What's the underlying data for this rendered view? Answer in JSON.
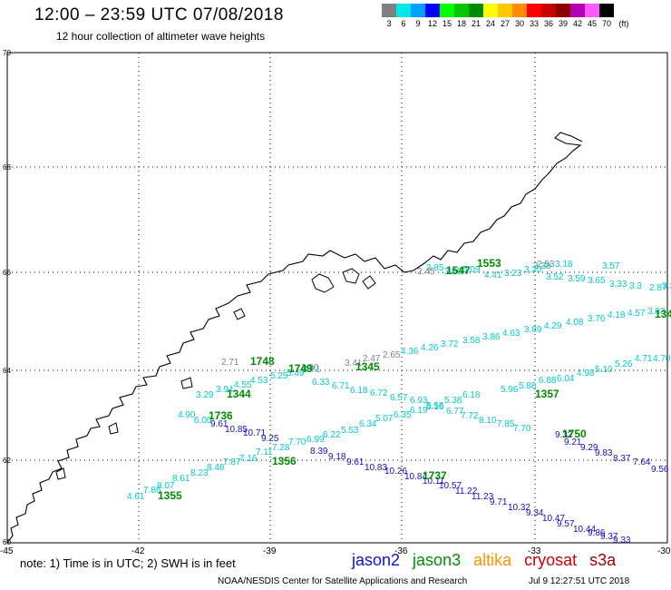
{
  "header": {
    "title": "12:00 – 23:59 UTC 07/08/2018",
    "subtitle": "12 hour collection of altimeter wave heights"
  },
  "scale": {
    "unit": "(ft)",
    "colors": [
      "#808080",
      "#00e8e8",
      "#00a0ff",
      "#0000ff",
      "#00ff00",
      "#00c800",
      "#008c00",
      "#ffff00",
      "#ffc800",
      "#ff8c00",
      "#ff0000",
      "#c80000",
      "#8c0000",
      "#b400b4",
      "#ff5aff",
      "#000000"
    ],
    "labels": [
      "3",
      "6",
      "9",
      "12",
      "15",
      "18",
      "21",
      "24",
      "27",
      "30",
      "33",
      "36",
      "39",
      "42",
      "45",
      "70"
    ]
  },
  "map": {
    "lat_labels": [
      "70",
      "68",
      "66",
      "64",
      "62",
      "60"
    ],
    "lon_labels": [
      "-45",
      "-42",
      "-39",
      "-36",
      "-33",
      "-30"
    ]
  },
  "tracks": {
    "cyan_a": {
      "color": "#00c8d0",
      "labels": [
        "4.61",
        "7.86",
        "8.07",
        "8.61",
        "8.23",
        "8.48",
        "7.87",
        "7.16",
        "7.11",
        "7.28",
        "7.70",
        "6.99",
        "6.22",
        "5.53",
        "6.34",
        "5.07",
        "6.35",
        "6.19",
        "5.56",
        "5.38",
        "6.18",
        "5.96",
        "6.04",
        "4.98",
        "5.10",
        "5.26",
        "4.71",
        "4.70"
      ]
    },
    "cyan_b": {
      "color": "#00c8d0",
      "labels": [
        "3.29",
        "3.94",
        "4.55",
        "4.53",
        "5.25",
        "5.49",
        "4.71",
        "6.33",
        "6.71",
        "6.18",
        "6.72",
        "6.57",
        "6.93",
        "6.16",
        "6.77",
        "7.72",
        "8.10",
        "7.85",
        "7.70",
        "5.88",
        "6.88"
      ]
    },
    "cyan_c": {
      "color": "#00c8d0",
      "labels": [
        "4.36",
        "4.26",
        "3.72",
        "3.58",
        "3.86",
        "4.63",
        "3.89",
        "4.29",
        "4.08",
        "3.76",
        "4.18",
        "4.57",
        "3.83"
      ]
    },
    "cyan_d": {
      "color": "#00c8d0",
      "labels": [
        "3.85",
        "3.90",
        "5.09",
        "4.41",
        "3.23",
        "3.20",
        "3.52",
        "3.59",
        "3.65",
        "3.33",
        "3.3",
        "2.87",
        "3.38",
        "3.57",
        "3.38",
        "3.18",
        "4.52"
      ]
    },
    "cyan_e": {
      "color": "#00c8d0",
      "labels": [
        "4.90",
        "6.00"
      ]
    },
    "blue": {
      "color": "#1010c8",
      "labels": [
        "9.61",
        "10.85",
        "10.71",
        "9.25",
        "8.39",
        "9.18",
        "9.61",
        "10.83",
        "10.26",
        "10.84",
        "10.11",
        "10.57",
        "11.22",
        "11.23",
        "9.71",
        "10.32",
        "9.34",
        "10.47",
        "9.57",
        "10.44",
        "9.86",
        "9.37",
        "9.33",
        "9.32",
        "9.21",
        "9.29",
        "9.83",
        "8.37",
        "7.64",
        "9.56",
        "8.92"
      ]
    },
    "gray": {
      "color": "#808080",
      "labels": [
        "2.71",
        "2.90",
        "3.41",
        "2.47",
        "2.65",
        "2.45",
        "2.53",
        "2.99"
      ]
    },
    "green_times": {
      "color": "#008c00",
      "labels": [
        "1748",
        "1749",
        "1345",
        "1344",
        "1736",
        "1356",
        "1355",
        "1737",
        "1357",
        "1750",
        "1553",
        "1547",
        "134"
      ]
    }
  },
  "footer": {
    "note": "note: 1) Time is in UTC; 2) SWH is in feet",
    "missions": [
      {
        "name": "jason2",
        "color": "#1010d0"
      },
      {
        "name": "jason3",
        "color": "#009000"
      },
      {
        "name": "altika",
        "color": "#ff9000"
      },
      {
        "name": "cryosat",
        "color": "#d00000"
      },
      {
        "name": "s3a",
        "color": "#a00000"
      }
    ],
    "credit": "NOAA/NESDIS Center for Satellite Applications and Research",
    "timestamp": "Jul  9 12:27:51 UTC 2018"
  }
}
